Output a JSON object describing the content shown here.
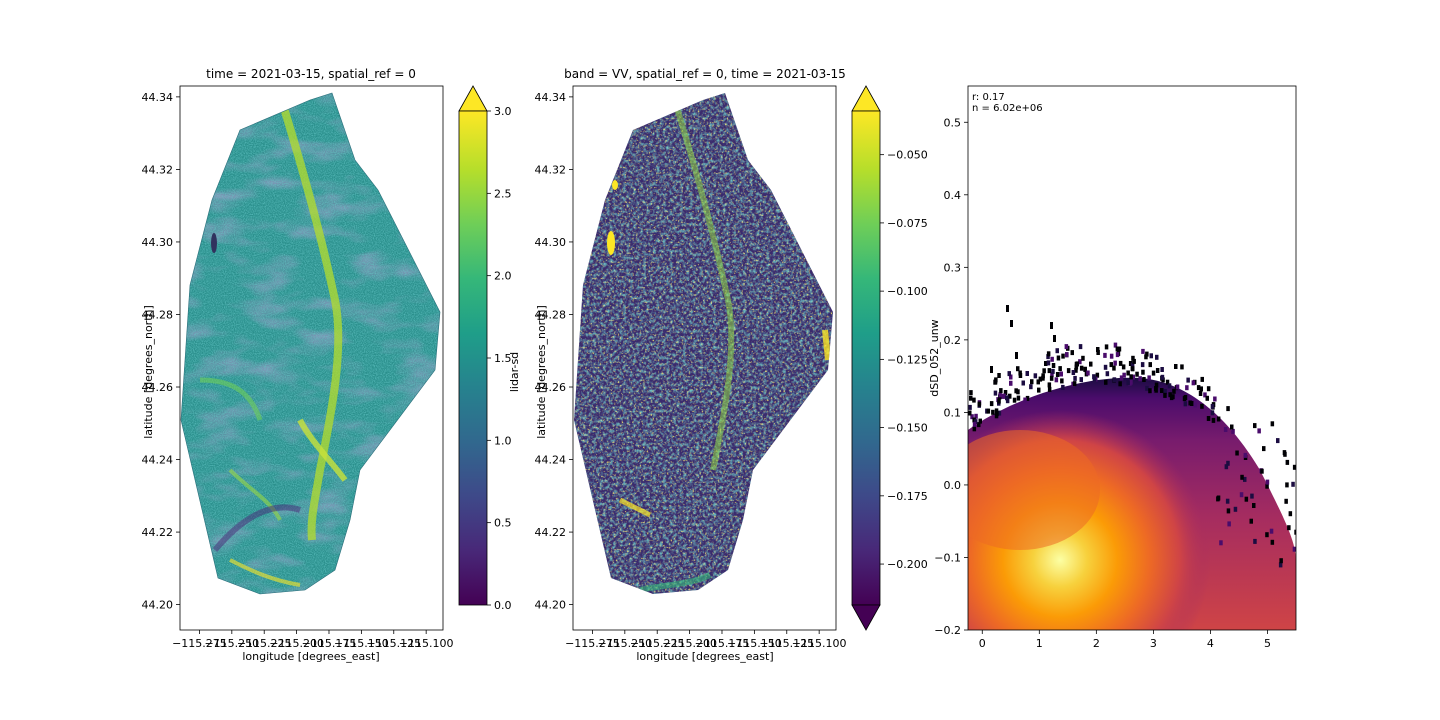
{
  "chart_data": [
    {
      "type": "heatmap",
      "title": "time = 2021-03-15, spatial_ref = 0",
      "xlabel": "longitude [degrees_east]",
      "ylabel": "latitude [degrees_north]",
      "xlim": [
        -115.29,
        -115.087
      ],
      "ylim": [
        44.193,
        44.343
      ],
      "x_ticks": [
        -115.275,
        -115.25,
        -115.225,
        -115.2,
        -115.175,
        -115.15,
        -115.125,
        -115.1
      ],
      "x_tick_labels": [
        "−115.275",
        "−115.250",
        "−115.225",
        "−115.200",
        "−115.175",
        "−115.150",
        "−115.125",
        "−115.100"
      ],
      "y_ticks": [
        44.2,
        44.22,
        44.24,
        44.26,
        44.28,
        44.3,
        44.32,
        44.34
      ],
      "y_tick_labels": [
        "44.20",
        "44.22",
        "44.24",
        "44.26",
        "44.28",
        "44.30",
        "44.32",
        "44.34"
      ],
      "colormap": "viridis",
      "colorbar": {
        "vmin": 0,
        "vmax": 3,
        "extend": "max",
        "ticks": [
          0,
          0.5,
          1,
          1.5,
          2,
          2.5,
          3
        ],
        "tick_labels": [
          "0.0",
          "0.5",
          "1.0",
          "1.5",
          "2.0",
          "2.5",
          "3.0"
        ],
        "label": "lidar-sd"
      }
    },
    {
      "type": "heatmap",
      "title": "band = VV, spatial_ref = 0, time = 2021-03-15",
      "xlabel": "longitude [degrees_east]",
      "ylabel": "latitude [degrees_north]",
      "xlim": [
        -115.29,
        -115.087
      ],
      "ylim": [
        44.193,
        44.343
      ],
      "x_ticks": [
        -115.275,
        -115.25,
        -115.225,
        -115.2,
        -115.175,
        -115.15,
        -115.125,
        -115.1
      ],
      "x_tick_labels": [
        "−115.275",
        "−115.250",
        "−115.225",
        "−115.200",
        "−115.175",
        "−115.150",
        "−115.125",
        "−115.100"
      ],
      "y_ticks": [
        44.2,
        44.22,
        44.24,
        44.26,
        44.28,
        44.3,
        44.32,
        44.34
      ],
      "y_tick_labels": [
        "44.20",
        "44.22",
        "44.24",
        "44.26",
        "44.28",
        "44.30",
        "44.32",
        "44.34"
      ],
      "colormap": "viridis",
      "colorbar": {
        "vmin": -0.215,
        "vmax": -0.034,
        "extend": "both",
        "ticks": [
          -0.2,
          -0.175,
          -0.15,
          -0.125,
          -0.1,
          -0.075,
          -0.05
        ],
        "tick_labels": [
          "−0.200",
          "−0.175",
          "−0.150",
          "−0.125",
          "−0.100",
          "−0.075",
          "−0.050"
        ],
        "label": ""
      }
    },
    {
      "type": "heatmap",
      "subtype": "2d-histogram",
      "title": "",
      "xlabel": "",
      "ylabel": "dSD_052_unw",
      "xlim": [
        -0.25,
        5.5
      ],
      "ylim": [
        -0.2,
        0.55
      ],
      "x_ticks": [
        0,
        1,
        2,
        3,
        4,
        5
      ],
      "x_tick_labels": [
        "0",
        "1",
        "2",
        "3",
        "4",
        "5"
      ],
      "y_ticks": [
        -0.2,
        -0.1,
        0.0,
        0.1,
        0.2,
        0.3,
        0.4,
        0.5
      ],
      "y_tick_labels": [
        "−0.2",
        "−0.1",
        "0.0",
        "0.1",
        "0.2",
        "0.3",
        "0.4",
        "0.5"
      ],
      "colormap": "inferno",
      "density_peak": {
        "x": 1.5,
        "y": -0.17
      },
      "annotations": [
        "r: 0.17",
        "n = 6.02e+06"
      ]
    }
  ],
  "colors": {
    "viridis": [
      "#440154",
      "#482878",
      "#3e4989",
      "#31688e",
      "#26828e",
      "#1f9e89",
      "#35b779",
      "#6ece58",
      "#b5de2b",
      "#fde725"
    ],
    "inferno": [
      "#000004",
      "#1b0c41",
      "#4a0c6b",
      "#781c6d",
      "#a52c60",
      "#cf4446",
      "#ed6925",
      "#fb9b06",
      "#f7d13d",
      "#fcffa4"
    ]
  }
}
